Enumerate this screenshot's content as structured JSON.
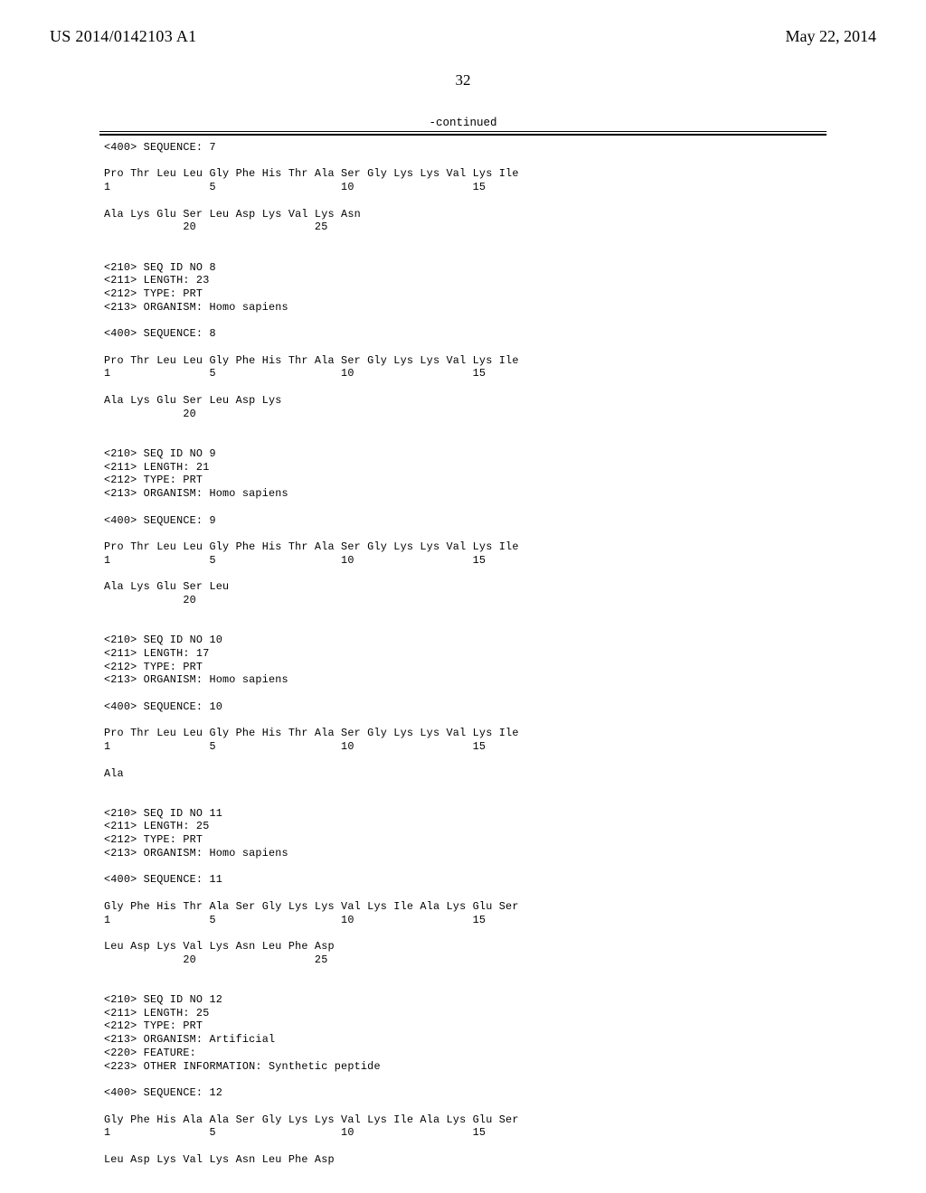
{
  "header": {
    "pub_number": "US 2014/0142103 A1",
    "pub_date": "May 22, 2014"
  },
  "page_number": "32",
  "continued_label": "-continued",
  "sequences": {
    "seq7": {
      "tag400": "<400> SEQUENCE: 7",
      "line1": "Pro Thr Leu Leu Gly Phe His Thr Ala Ser Gly Lys Lys Val Lys Ile",
      "nums1": "1               5                   10                  15",
      "line2": "Ala Lys Glu Ser Leu Asp Lys Val Lys Asn",
      "nums2": "            20                  25"
    },
    "seq8": {
      "tag210": "<210> SEQ ID NO 8",
      "tag211": "<211> LENGTH: 23",
      "tag212": "<212> TYPE: PRT",
      "tag213": "<213> ORGANISM: Homo sapiens",
      "tag400": "<400> SEQUENCE: 8",
      "line1": "Pro Thr Leu Leu Gly Phe His Thr Ala Ser Gly Lys Lys Val Lys Ile",
      "nums1": "1               5                   10                  15",
      "line2": "Ala Lys Glu Ser Leu Asp Lys",
      "nums2": "            20"
    },
    "seq9": {
      "tag210": "<210> SEQ ID NO 9",
      "tag211": "<211> LENGTH: 21",
      "tag212": "<212> TYPE: PRT",
      "tag213": "<213> ORGANISM: Homo sapiens",
      "tag400": "<400> SEQUENCE: 9",
      "line1": "Pro Thr Leu Leu Gly Phe His Thr Ala Ser Gly Lys Lys Val Lys Ile",
      "nums1": "1               5                   10                  15",
      "line2": "Ala Lys Glu Ser Leu",
      "nums2": "            20"
    },
    "seq10": {
      "tag210": "<210> SEQ ID NO 10",
      "tag211": "<211> LENGTH: 17",
      "tag212": "<212> TYPE: PRT",
      "tag213": "<213> ORGANISM: Homo sapiens",
      "tag400": "<400> SEQUENCE: 10",
      "line1": "Pro Thr Leu Leu Gly Phe His Thr Ala Ser Gly Lys Lys Val Lys Ile",
      "nums1": "1               5                   10                  15",
      "line2": "Ala"
    },
    "seq11": {
      "tag210": "<210> SEQ ID NO 11",
      "tag211": "<211> LENGTH: 25",
      "tag212": "<212> TYPE: PRT",
      "tag213": "<213> ORGANISM: Homo sapiens",
      "tag400": "<400> SEQUENCE: 11",
      "line1": "Gly Phe His Thr Ala Ser Gly Lys Lys Val Lys Ile Ala Lys Glu Ser",
      "nums1": "1               5                   10                  15",
      "line2": "Leu Asp Lys Val Lys Asn Leu Phe Asp",
      "nums2": "            20                  25"
    },
    "seq12": {
      "tag210": "<210> SEQ ID NO 12",
      "tag211": "<211> LENGTH: 25",
      "tag212": "<212> TYPE: PRT",
      "tag213": "<213> ORGANISM: Artificial",
      "tag220": "<220> FEATURE:",
      "tag223": "<223> OTHER INFORMATION: Synthetic peptide",
      "tag400": "<400> SEQUENCE: 12",
      "line1": "Gly Phe His Ala Ala Ser Gly Lys Lys Val Lys Ile Ala Lys Glu Ser",
      "nums1": "1               5                   10                  15",
      "line2": "Leu Asp Lys Val Lys Asn Leu Phe Asp"
    }
  }
}
